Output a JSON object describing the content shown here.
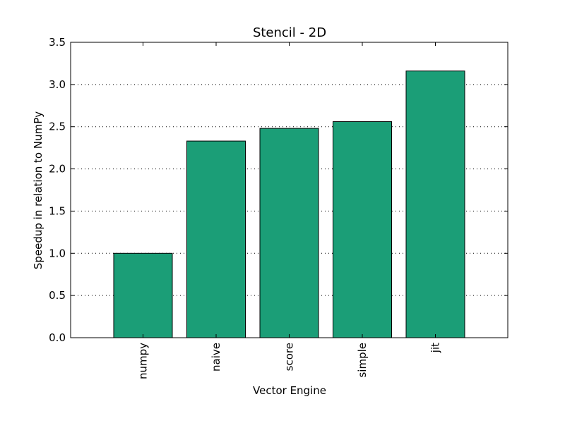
{
  "chart_data": {
    "type": "bar",
    "title": "Stencil - 2D",
    "xlabel": "Vector Engine",
    "ylabel": "Speedup in relation to NumPy",
    "categories": [
      "numpy",
      "naive",
      "score",
      "simple",
      "jit"
    ],
    "values": [
      1.0,
      2.33,
      2.48,
      2.56,
      3.16
    ],
    "ylim": [
      0,
      3.5
    ],
    "yticks": [
      "0.0",
      "0.5",
      "1.0",
      "1.5",
      "2.0",
      "2.5",
      "3.0",
      "3.5"
    ],
    "grid": "horizontal dotted",
    "legend": "none",
    "bar_color": "#1b9e77",
    "x_tick_rotation": "vertical"
  }
}
